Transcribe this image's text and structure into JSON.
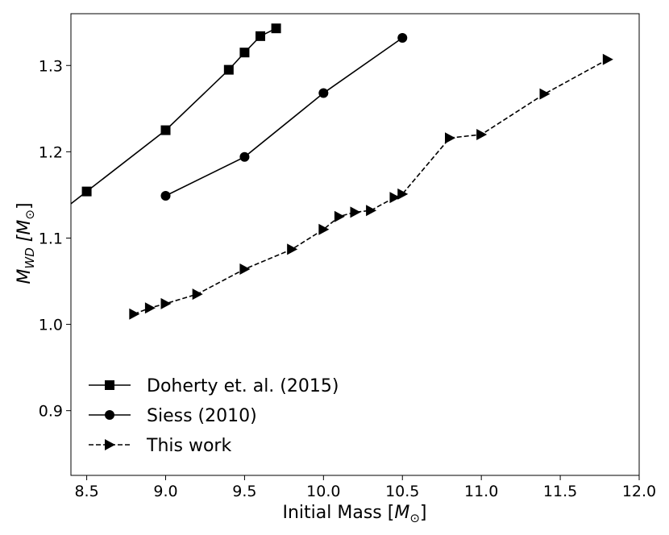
{
  "chart_data": {
    "type": "line",
    "title": "",
    "xlabel": "Initial Mass [",
    "xlabel_unit": "M",
    "xlabel_unit_sub": "⊙",
    "xlabel_close": "]",
    "ylabel": "M",
    "ylabel_sub": "WD",
    "ylabel_unit": "[M",
    "ylabel_unit_sub": "⊙",
    "ylabel_close": "]",
    "xlim": [
      8.4,
      12.0
    ],
    "ylim": [
      0.825,
      1.36
    ],
    "xticks": [
      8.5,
      9.0,
      9.5,
      10.0,
      10.5,
      11.0,
      11.5,
      12.0
    ],
    "xtick_labels": [
      "8.5",
      "9.0",
      "9.5",
      "10.0",
      "10.5",
      "11.0",
      "11.5",
      "12.0"
    ],
    "yticks": [
      0.9,
      1.0,
      1.1,
      1.2,
      1.3
    ],
    "ytick_labels": [
      "0.9",
      "1.0",
      "1.1",
      "1.2",
      "1.3"
    ],
    "grid": false,
    "legend_position": "bottom-left",
    "series": [
      {
        "name": "Doherty et. al. (2015)",
        "marker": "square",
        "linestyle": "solid",
        "color": "#000000",
        "extend_to_left_edge": true,
        "x": [
          8.5,
          9.0,
          9.4,
          9.5,
          9.6,
          9.7
        ],
        "y": [
          1.154,
          1.225,
          1.295,
          1.315,
          1.334,
          1.343
        ]
      },
      {
        "name": "Siess (2010)",
        "marker": "circle",
        "linestyle": "solid",
        "color": "#000000",
        "x": [
          9.0,
          9.5,
          10.0,
          10.5
        ],
        "y": [
          1.149,
          1.194,
          1.268,
          1.332
        ]
      },
      {
        "name": "This work",
        "marker": "triangle-right",
        "linestyle": "dashed",
        "color": "#000000",
        "x": [
          8.8,
          8.9,
          9.0,
          9.2,
          9.5,
          9.8,
          10.0,
          10.1,
          10.2,
          10.3,
          10.45,
          10.5,
          10.8,
          11.0,
          11.4,
          11.8
        ],
        "y": [
          1.012,
          1.019,
          1.024,
          1.035,
          1.064,
          1.087,
          1.11,
          1.125,
          1.13,
          1.132,
          1.147,
          1.151,
          1.216,
          1.22,
          1.267,
          1.307
        ]
      }
    ]
  }
}
